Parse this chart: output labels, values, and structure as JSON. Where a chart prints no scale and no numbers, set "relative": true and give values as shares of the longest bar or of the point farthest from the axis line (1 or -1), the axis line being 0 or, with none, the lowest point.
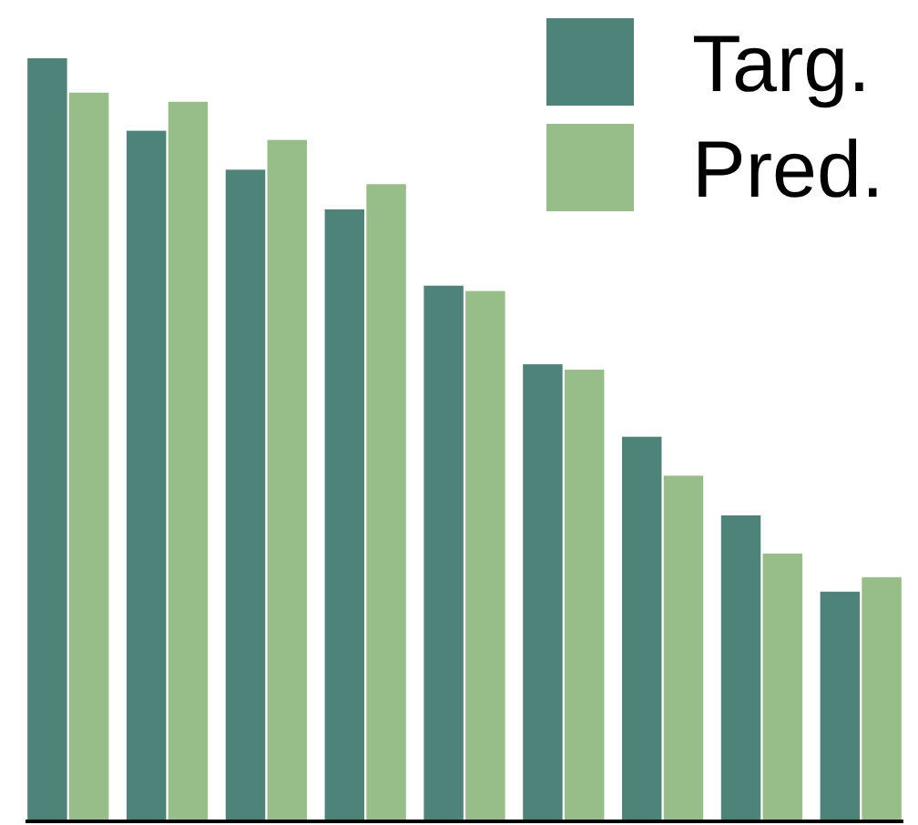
{
  "chart_data": {
    "type": "bar",
    "relative": true,
    "categories": [
      null,
      null,
      null,
      null,
      null,
      null,
      null,
      null,
      null
    ],
    "series": [
      {
        "name": "Targ.",
        "color": "#4e8379",
        "values": [
          1,
          0.905,
          0.854,
          0.802,
          0.702,
          0.599,
          0.504,
          0.401,
          0.301
        ]
      },
      {
        "name": "Pred.",
        "color": "#97bd88",
        "values": [
          0.955,
          0.943,
          0.893,
          0.835,
          0.695,
          0.592,
          0.453,
          0.351,
          0.32
        ]
      }
    ],
    "legend": "top right"
  }
}
